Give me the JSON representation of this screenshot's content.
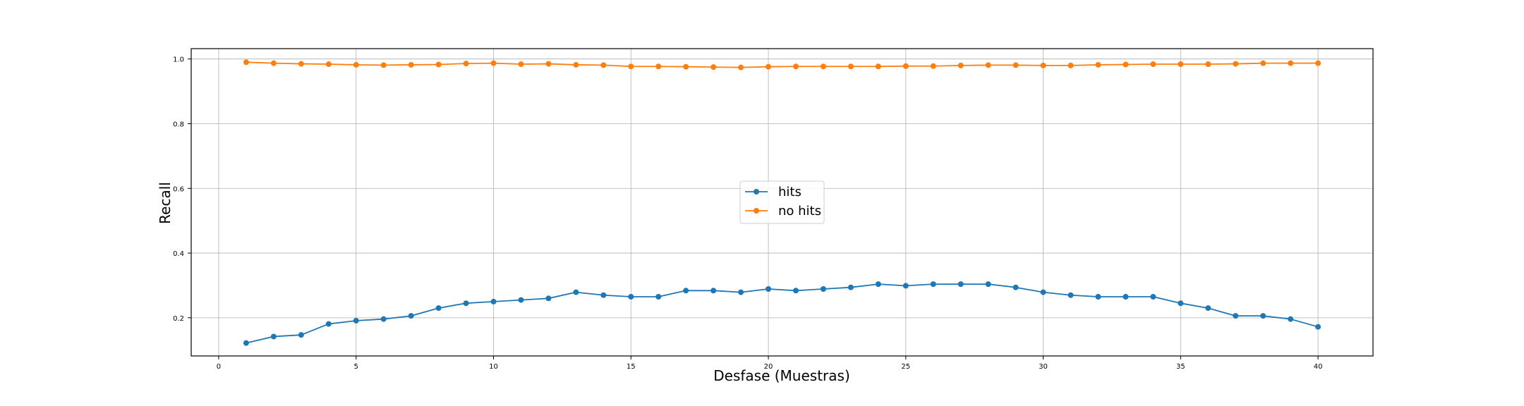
{
  "chart_data": {
    "type": "line",
    "title": "",
    "xlabel": "Desfase (Muestras)",
    "ylabel": "Recall",
    "xlim": [
      -1,
      42
    ],
    "ylim": [
      0.082,
      1.032
    ],
    "xticks": [
      0,
      5,
      10,
      15,
      20,
      25,
      30,
      35,
      40
    ],
    "yticks": [
      0.2,
      0.4,
      0.6,
      0.8,
      1.0
    ],
    "xtick_labels": [
      "0",
      "5",
      "10",
      "15",
      "20",
      "25",
      "30",
      "35",
      "40"
    ],
    "ytick_labels": [
      "0.2",
      "0.4",
      "0.6",
      "0.8",
      "1.0"
    ],
    "grid": true,
    "legend_position": "center",
    "x": [
      1,
      2,
      3,
      4,
      5,
      6,
      7,
      8,
      9,
      10,
      11,
      12,
      13,
      14,
      15,
      16,
      17,
      18,
      19,
      20,
      21,
      22,
      23,
      24,
      25,
      26,
      27,
      28,
      29,
      30,
      31,
      32,
      33,
      34,
      35,
      36,
      37,
      38,
      39,
      40
    ],
    "series": [
      {
        "name": "hits",
        "color": "#1f77b4",
        "values": [
          0.122,
          0.142,
          0.147,
          0.181,
          0.191,
          0.196,
          0.206,
          0.23,
          0.245,
          0.25,
          0.255,
          0.26,
          0.279,
          0.27,
          0.265,
          0.265,
          0.284,
          0.284,
          0.279,
          0.289,
          0.284,
          0.289,
          0.294,
          0.304,
          0.299,
          0.304,
          0.304,
          0.304,
          0.294,
          0.279,
          0.27,
          0.265,
          0.265,
          0.265,
          0.245,
          0.23,
          0.206,
          0.206,
          0.196,
          0.172
        ]
      },
      {
        "name": "no hits",
        "color": "#ff7f0e",
        "values": [
          0.99,
          0.987,
          0.985,
          0.984,
          0.982,
          0.981,
          0.982,
          0.983,
          0.986,
          0.987,
          0.984,
          0.985,
          0.982,
          0.981,
          0.977,
          0.977,
          0.976,
          0.975,
          0.974,
          0.976,
          0.977,
          0.977,
          0.977,
          0.977,
          0.978,
          0.978,
          0.98,
          0.981,
          0.981,
          0.98,
          0.98,
          0.982,
          0.983,
          0.984,
          0.984,
          0.984,
          0.985,
          0.987,
          0.987,
          0.987
        ]
      }
    ]
  }
}
